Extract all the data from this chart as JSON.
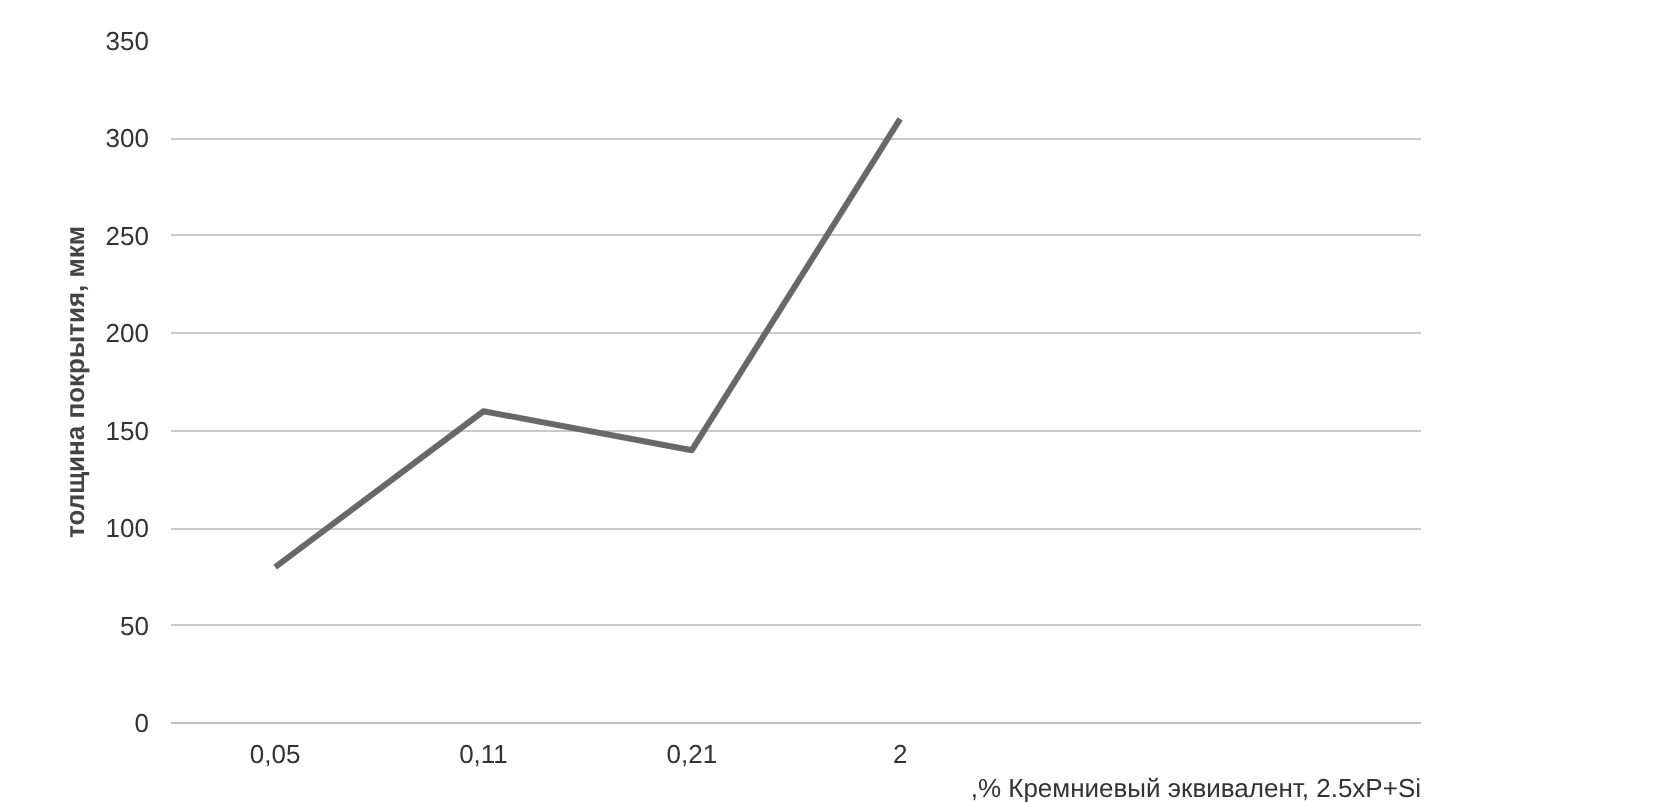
{
  "chart_data": {
    "type": "line",
    "ylabel": "толщина покрытия, мкм",
    "xlabel": ",% Кремниевый эквивалент, 2.5xP+Si",
    "categories": [
      "0,05",
      "0,11",
      "0,21",
      "2",
      null,
      null
    ],
    "series": [
      {
        "color": "#686868",
        "values": [
          80,
          160,
          140,
          310,
          null,
          null
        ]
      }
    ],
    "ylim": [
      0,
      350
    ],
    "yticks": [
      0,
      50,
      100,
      150,
      200,
      250,
      300,
      350
    ],
    "grid": "y",
    "marker": "none",
    "line_style": "solid"
  }
}
